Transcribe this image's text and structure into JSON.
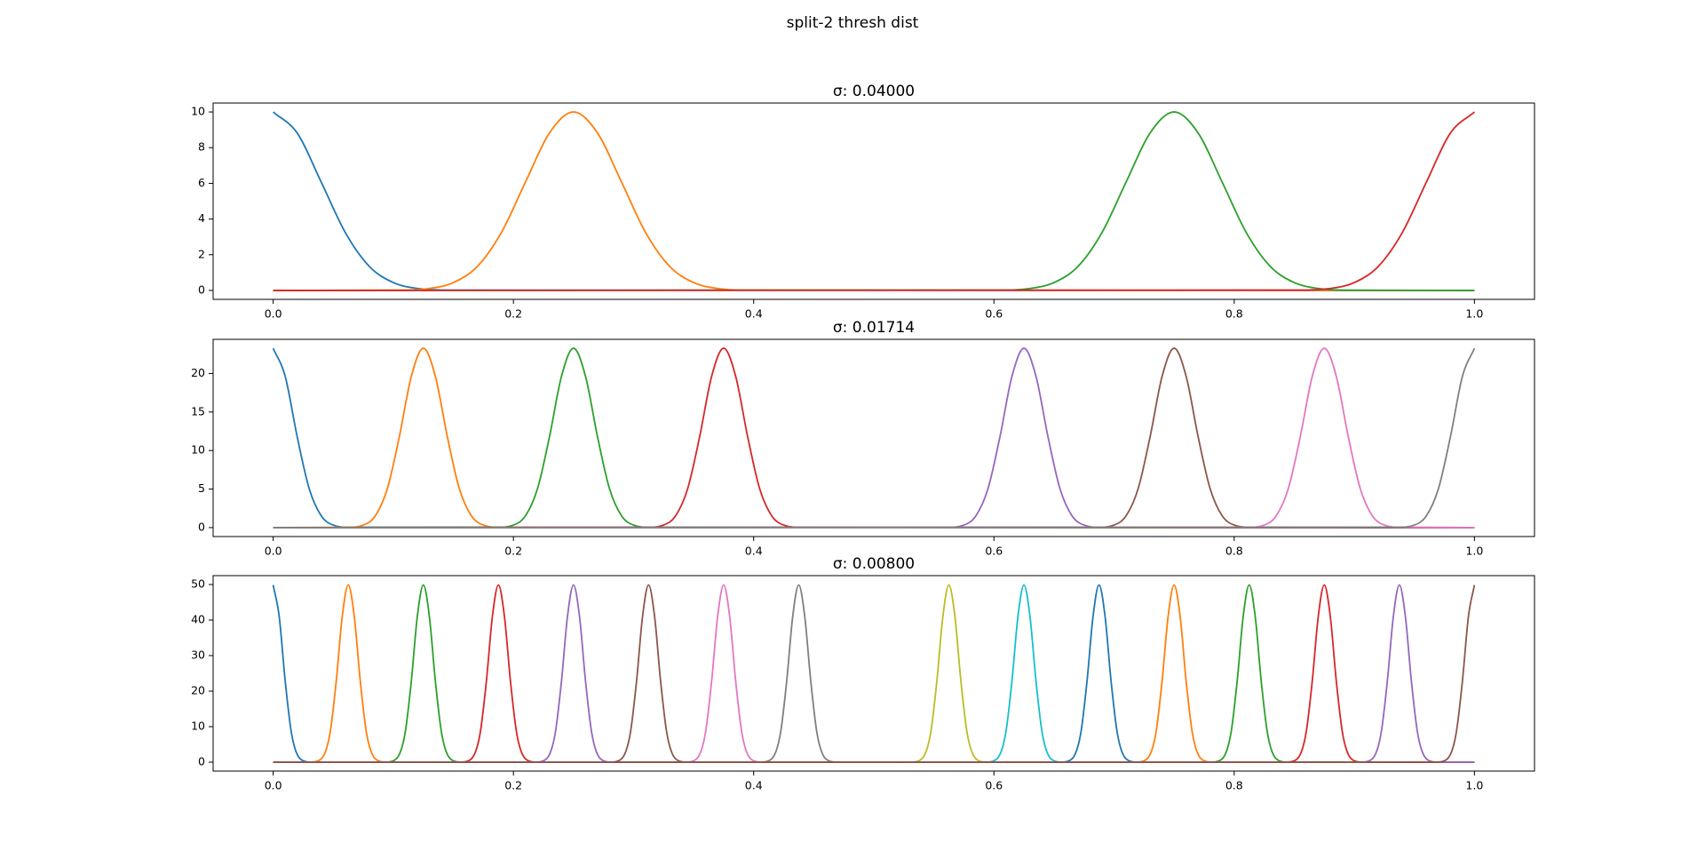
{
  "title": "split-2 thresh dist",
  "chart_data": [
    {
      "type": "line",
      "title": "σ: 0.04000",
      "xlim": [
        -0.05,
        1.05
      ],
      "xticks": [
        {
          "value": 0,
          "label": "0.0"
        },
        0.2,
        0.4,
        0.6,
        0.8,
        {
          "value": 1,
          "label": "1.0"
        }
      ],
      "ylim": [
        -0.5,
        10.5
      ],
      "yticks": [
        0,
        2,
        4,
        6,
        8,
        10
      ],
      "series": [
        {
          "color": "#1f77b4",
          "x": [
            0,
            0.02,
            0.04,
            0.06,
            0.08,
            0.1,
            0.12,
            0.14,
            1
          ],
          "values": [
            10,
            8.82,
            6.07,
            3.25,
            1.35,
            0.44,
            0.11,
            0.02,
            0
          ]
        },
        {
          "color": "#ff7f0e",
          "x": [
            0,
            0.11,
            0.13,
            0.15,
            0.17,
            0.19,
            0.21,
            0.23,
            0.25,
            0.27,
            0.29,
            0.31,
            0.33,
            0.35,
            0.37,
            0.39,
            1
          ],
          "values": [
            0,
            0.02,
            0.11,
            0.44,
            1.35,
            3.25,
            6.07,
            8.82,
            10,
            8.82,
            6.07,
            3.25,
            1.35,
            0.44,
            0.11,
            0.02,
            0
          ]
        },
        {
          "color": "#2ca02c",
          "x": [
            0,
            0.61,
            0.63,
            0.65,
            0.67,
            0.69,
            0.71,
            0.73,
            0.75,
            0.77,
            0.79,
            0.81,
            0.83,
            0.85,
            0.87,
            0.89,
            1
          ],
          "values": [
            0,
            0.02,
            0.11,
            0.44,
            1.35,
            3.25,
            6.07,
            8.82,
            10,
            8.82,
            6.07,
            3.25,
            1.35,
            0.44,
            0.11,
            0.02,
            0
          ]
        },
        {
          "color": "#d62728",
          "x": [
            0,
            0.86,
            0.88,
            0.9,
            0.92,
            0.94,
            0.96,
            0.98,
            1
          ],
          "values": [
            0,
            0.02,
            0.11,
            0.44,
            1.35,
            3.25,
            6.07,
            8.82,
            10
          ]
        }
      ]
    },
    {
      "type": "line",
      "title": "σ: 0.01714",
      "xlim": [
        -0.05,
        1.05
      ],
      "xticks": [
        {
          "value": 0,
          "label": "0.0"
        },
        0.2,
        0.4,
        0.6,
        0.8,
        {
          "value": 1,
          "label": "1.0"
        }
      ],
      "ylim": [
        -1.16,
        24.43
      ],
      "yticks": [
        0,
        5,
        10,
        15,
        20
      ],
      "series": [
        {
          "color": "#1f77b4",
          "x": [
            0,
            0.01,
            0.02,
            0.03,
            0.04,
            0.05,
            0.06,
            1
          ],
          "values": [
            23.27,
            19.63,
            11.78,
            5.03,
            1.53,
            0.33,
            0.05,
            0
          ]
        },
        {
          "color": "#ff7f0e",
          "x": [
            0,
            0.065,
            0.075,
            0.085,
            0.095,
            0.105,
            0.115,
            0.125,
            0.135,
            0.145,
            0.155,
            0.165,
            0.175,
            0.185,
            1
          ],
          "values": [
            0,
            0.05,
            0.33,
            1.53,
            5.03,
            11.78,
            19.63,
            23.27,
            19.63,
            11.78,
            5.03,
            1.53,
            0.33,
            0.05,
            0
          ]
        },
        {
          "color": "#2ca02c",
          "x": [
            0,
            0.19,
            0.2,
            0.21,
            0.22,
            0.23,
            0.24,
            0.25,
            0.26,
            0.27,
            0.28,
            0.29,
            0.3,
            0.31,
            1
          ],
          "values": [
            0,
            0.05,
            0.33,
            1.53,
            5.03,
            11.78,
            19.63,
            23.27,
            19.63,
            11.78,
            5.03,
            1.53,
            0.33,
            0.05,
            0
          ]
        },
        {
          "color": "#d62728",
          "x": [
            0,
            0.315,
            0.325,
            0.335,
            0.345,
            0.355,
            0.365,
            0.375,
            0.385,
            0.395,
            0.405,
            0.415,
            0.425,
            0.435,
            1
          ],
          "values": [
            0,
            0.05,
            0.33,
            1.53,
            5.03,
            11.78,
            19.63,
            23.27,
            19.63,
            11.78,
            5.03,
            1.53,
            0.33,
            0.05,
            0
          ]
        },
        {
          "color": "#9467bd",
          "x": [
            0,
            0.565,
            0.575,
            0.585,
            0.595,
            0.605,
            0.615,
            0.625,
            0.635,
            0.645,
            0.655,
            0.665,
            0.675,
            0.685,
            1
          ],
          "values": [
            0,
            0.05,
            0.33,
            1.53,
            5.03,
            11.78,
            19.63,
            23.27,
            19.63,
            11.78,
            5.03,
            1.53,
            0.33,
            0.05,
            0
          ]
        },
        {
          "color": "#8c564b",
          "x": [
            0,
            0.69,
            0.7,
            0.71,
            0.72,
            0.73,
            0.74,
            0.75,
            0.76,
            0.77,
            0.78,
            0.79,
            0.8,
            0.81,
            1
          ],
          "values": [
            0,
            0.05,
            0.33,
            1.53,
            5.03,
            11.78,
            19.63,
            23.27,
            19.63,
            11.78,
            5.03,
            1.53,
            0.33,
            0.05,
            0
          ]
        },
        {
          "color": "#e377c2",
          "x": [
            0,
            0.815,
            0.825,
            0.835,
            0.845,
            0.855,
            0.865,
            0.875,
            0.885,
            0.895,
            0.905,
            0.915,
            0.925,
            0.935,
            1
          ],
          "values": [
            0,
            0.05,
            0.33,
            1.53,
            5.03,
            11.78,
            19.63,
            23.27,
            19.63,
            11.78,
            5.03,
            1.53,
            0.33,
            0.05,
            0
          ]
        },
        {
          "color": "#7f7f7f",
          "x": [
            0,
            0.94,
            0.95,
            0.96,
            0.97,
            0.98,
            0.99,
            1
          ],
          "values": [
            0,
            0.05,
            0.33,
            1.53,
            5.03,
            11.78,
            19.63,
            23.27
          ]
        }
      ]
    },
    {
      "type": "line",
      "title": "σ: 0.00800",
      "xlim": [
        -0.05,
        1.05
      ],
      "xticks": [
        {
          "value": 0,
          "label": "0.0"
        },
        0.2,
        0.4,
        0.6,
        0.8,
        {
          "value": 1,
          "label": "1.0"
        }
      ],
      "ylim": [
        -2.5,
        52.5
      ],
      "yticks": [
        0,
        10,
        20,
        30,
        40,
        50
      ],
      "series": [
        {
          "color": "#1f77b4",
          "x": [
            0,
            0.005,
            0.01,
            0.015,
            0.02,
            0.025,
            0.03,
            1
          ],
          "values": [
            49.87,
            41.02,
            22.84,
            8.6,
            2.19,
            0.38,
            0.04,
            0
          ]
        },
        {
          "color": "#ff7f0e",
          "x": [
            0,
            0.0325,
            0.0375,
            0.0425,
            0.0475,
            0.0525,
            0.0575,
            0.0625,
            0.0675,
            0.0725,
            0.0775,
            0.0825,
            0.0875,
            0.0925,
            1
          ],
          "values": [
            0,
            0.04,
            0.38,
            2.19,
            8.6,
            22.84,
            41.02,
            49.87,
            41.02,
            22.84,
            8.6,
            2.19,
            0.38,
            0.04,
            0
          ]
        },
        {
          "color": "#2ca02c",
          "x": [
            0,
            0.095,
            0.1,
            0.105,
            0.11,
            0.115,
            0.12,
            0.125,
            0.13,
            0.135,
            0.14,
            0.145,
            0.15,
            0.155,
            1
          ],
          "values": [
            0,
            0.04,
            0.38,
            2.19,
            8.6,
            22.84,
            41.02,
            49.87,
            41.02,
            22.84,
            8.6,
            2.19,
            0.38,
            0.04,
            0
          ]
        },
        {
          "color": "#d62728",
          "x": [
            0,
            0.1575,
            0.1625,
            0.1675,
            0.1725,
            0.1775,
            0.1825,
            0.1875,
            0.1925,
            0.1975,
            0.2025,
            0.2075,
            0.2125,
            0.2175,
            1
          ],
          "values": [
            0,
            0.04,
            0.38,
            2.19,
            8.6,
            22.84,
            41.02,
            49.87,
            41.02,
            22.84,
            8.6,
            2.19,
            0.38,
            0.04,
            0
          ]
        },
        {
          "color": "#9467bd",
          "x": [
            0,
            0.22,
            0.225,
            0.23,
            0.235,
            0.24,
            0.245,
            0.25,
            0.255,
            0.26,
            0.265,
            0.27,
            0.275,
            0.28,
            1
          ],
          "values": [
            0,
            0.04,
            0.38,
            2.19,
            8.6,
            22.84,
            41.02,
            49.87,
            41.02,
            22.84,
            8.6,
            2.19,
            0.38,
            0.04,
            0
          ]
        },
        {
          "color": "#8c564b",
          "x": [
            0,
            0.2825,
            0.2875,
            0.2925,
            0.2975,
            0.3025,
            0.3075,
            0.3125,
            0.3175,
            0.3225,
            0.3275,
            0.3325,
            0.3375,
            0.3425,
            1
          ],
          "values": [
            0,
            0.04,
            0.38,
            2.19,
            8.6,
            22.84,
            41.02,
            49.87,
            41.02,
            22.84,
            8.6,
            2.19,
            0.38,
            0.04,
            0
          ]
        },
        {
          "color": "#e377c2",
          "x": [
            0,
            0.345,
            0.35,
            0.355,
            0.36,
            0.365,
            0.37,
            0.375,
            0.38,
            0.385,
            0.39,
            0.395,
            0.4,
            0.405,
            1
          ],
          "values": [
            0,
            0.04,
            0.38,
            2.19,
            8.6,
            22.84,
            41.02,
            49.87,
            41.02,
            22.84,
            8.6,
            2.19,
            0.38,
            0.04,
            0
          ]
        },
        {
          "color": "#7f7f7f",
          "x": [
            0,
            0.4075,
            0.4125,
            0.4175,
            0.4225,
            0.4275,
            0.4325,
            0.4375,
            0.4425,
            0.4475,
            0.4525,
            0.4575,
            0.4625,
            0.4675,
            1
          ],
          "values": [
            0,
            0.04,
            0.38,
            2.19,
            8.6,
            22.84,
            41.02,
            49.87,
            41.02,
            22.84,
            8.6,
            2.19,
            0.38,
            0.04,
            0
          ]
        },
        {
          "color": "#bcbd22",
          "x": [
            0,
            0.5325,
            0.5375,
            0.5425,
            0.5475,
            0.5525,
            0.5575,
            0.5625,
            0.5675,
            0.5725,
            0.5775,
            0.5825,
            0.5875,
            0.5925,
            1
          ],
          "values": [
            0,
            0.04,
            0.38,
            2.19,
            8.6,
            22.84,
            41.02,
            49.87,
            41.02,
            22.84,
            8.6,
            2.19,
            0.38,
            0.04,
            0
          ]
        },
        {
          "color": "#17becf",
          "x": [
            0,
            0.595,
            0.6,
            0.605,
            0.61,
            0.615,
            0.62,
            0.625,
            0.63,
            0.635,
            0.64,
            0.645,
            0.65,
            0.655,
            1
          ],
          "values": [
            0,
            0.04,
            0.38,
            2.19,
            8.6,
            22.84,
            41.02,
            49.87,
            41.02,
            22.84,
            8.6,
            2.19,
            0.38,
            0.04,
            0
          ]
        },
        {
          "color": "#1f77b4",
          "x": [
            0,
            0.6575,
            0.6625,
            0.6675,
            0.6725,
            0.6775,
            0.6825,
            0.6875,
            0.6925,
            0.6975,
            0.7025,
            0.7075,
            0.7125,
            0.7175,
            1
          ],
          "values": [
            0,
            0.04,
            0.38,
            2.19,
            8.6,
            22.84,
            41.02,
            49.87,
            41.02,
            22.84,
            8.6,
            2.19,
            0.38,
            0.04,
            0
          ]
        },
        {
          "color": "#ff7f0e",
          "x": [
            0,
            0.72,
            0.725,
            0.73,
            0.735,
            0.74,
            0.745,
            0.75,
            0.755,
            0.76,
            0.765,
            0.77,
            0.775,
            0.78,
            1
          ],
          "values": [
            0,
            0.04,
            0.38,
            2.19,
            8.6,
            22.84,
            41.02,
            49.87,
            41.02,
            22.84,
            8.6,
            2.19,
            0.38,
            0.04,
            0
          ]
        },
        {
          "color": "#2ca02c",
          "x": [
            0,
            0.7825,
            0.7875,
            0.7925,
            0.7975,
            0.8025,
            0.8075,
            0.8125,
            0.8175,
            0.8225,
            0.8275,
            0.8325,
            0.8375,
            0.8425,
            1
          ],
          "values": [
            0,
            0.04,
            0.38,
            2.19,
            8.6,
            22.84,
            41.02,
            49.87,
            41.02,
            22.84,
            8.6,
            2.19,
            0.38,
            0.04,
            0
          ]
        },
        {
          "color": "#d62728",
          "x": [
            0,
            0.845,
            0.85,
            0.855,
            0.86,
            0.865,
            0.87,
            0.875,
            0.88,
            0.885,
            0.89,
            0.895,
            0.9,
            0.905,
            1
          ],
          "values": [
            0,
            0.04,
            0.38,
            2.19,
            8.6,
            22.84,
            41.02,
            49.87,
            41.02,
            22.84,
            8.6,
            2.19,
            0.38,
            0.04,
            0
          ]
        },
        {
          "color": "#9467bd",
          "x": [
            0,
            0.9075,
            0.9125,
            0.9175,
            0.9225,
            0.9275,
            0.9325,
            0.9375,
            0.9425,
            0.9475,
            0.9525,
            0.9575,
            0.9625,
            0.9675,
            1
          ],
          "values": [
            0,
            0.04,
            0.38,
            2.19,
            8.6,
            22.84,
            41.02,
            49.87,
            41.02,
            22.84,
            8.6,
            2.19,
            0.38,
            0.04,
            0
          ]
        },
        {
          "color": "#8c564b",
          "x": [
            0,
            0.97,
            0.975,
            0.98,
            0.985,
            0.99,
            0.995,
            1
          ],
          "values": [
            0,
            0.04,
            0.38,
            2.19,
            8.6,
            22.84,
            41.02,
            49.87
          ]
        }
      ]
    }
  ]
}
